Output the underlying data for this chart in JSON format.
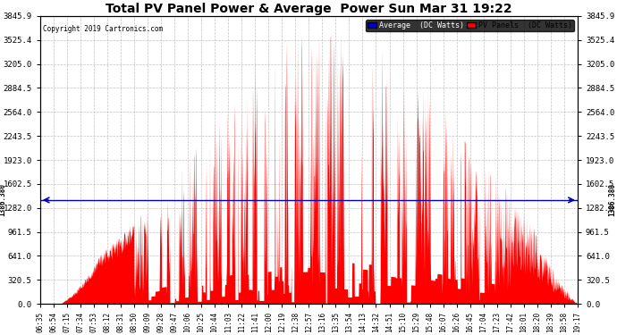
{
  "title": "Total PV Panel Power & Average  Power Sun Mar 31 19:22",
  "copyright": "Copyright 2019 Cartronics.com",
  "ymin": 0.0,
  "ymax": 3845.9,
  "yticks": [
    0.0,
    320.5,
    641.0,
    961.5,
    1282.0,
    1602.5,
    1923.0,
    2243.5,
    2564.0,
    2884.5,
    3205.0,
    3525.4,
    3845.9
  ],
  "average_line": 1386.38,
  "average_label": "1386.380",
  "bg_color": "#ffffff",
  "fill_color": "#ff0000",
  "avg_line_color": "#0000bb",
  "grid_color": "#bbbbbb",
  "title_color": "#000000",
  "copyright_color": "#000000",
  "legend_avg_bg": "#0000cc",
  "legend_pv_bg": "#ff0000",
  "legend_avg_text": "Average  (DC Watts)",
  "legend_pv_text": "PV Panels  (DC Watts)",
  "xtick_labels": [
    "06:35",
    "06:54",
    "07:15",
    "07:34",
    "07:53",
    "08:12",
    "08:31",
    "08:50",
    "09:09",
    "09:28",
    "09:47",
    "10:06",
    "10:25",
    "10:44",
    "11:03",
    "11:22",
    "11:41",
    "12:00",
    "12:19",
    "12:38",
    "12:57",
    "13:16",
    "13:35",
    "13:54",
    "14:13",
    "14:32",
    "14:51",
    "15:10",
    "15:29",
    "15:48",
    "16:07",
    "16:26",
    "16:45",
    "17:04",
    "17:23",
    "17:42",
    "18:01",
    "18:20",
    "18:39",
    "18:58",
    "19:17"
  ],
  "figwidth": 6.9,
  "figheight": 3.75,
  "dpi": 100
}
